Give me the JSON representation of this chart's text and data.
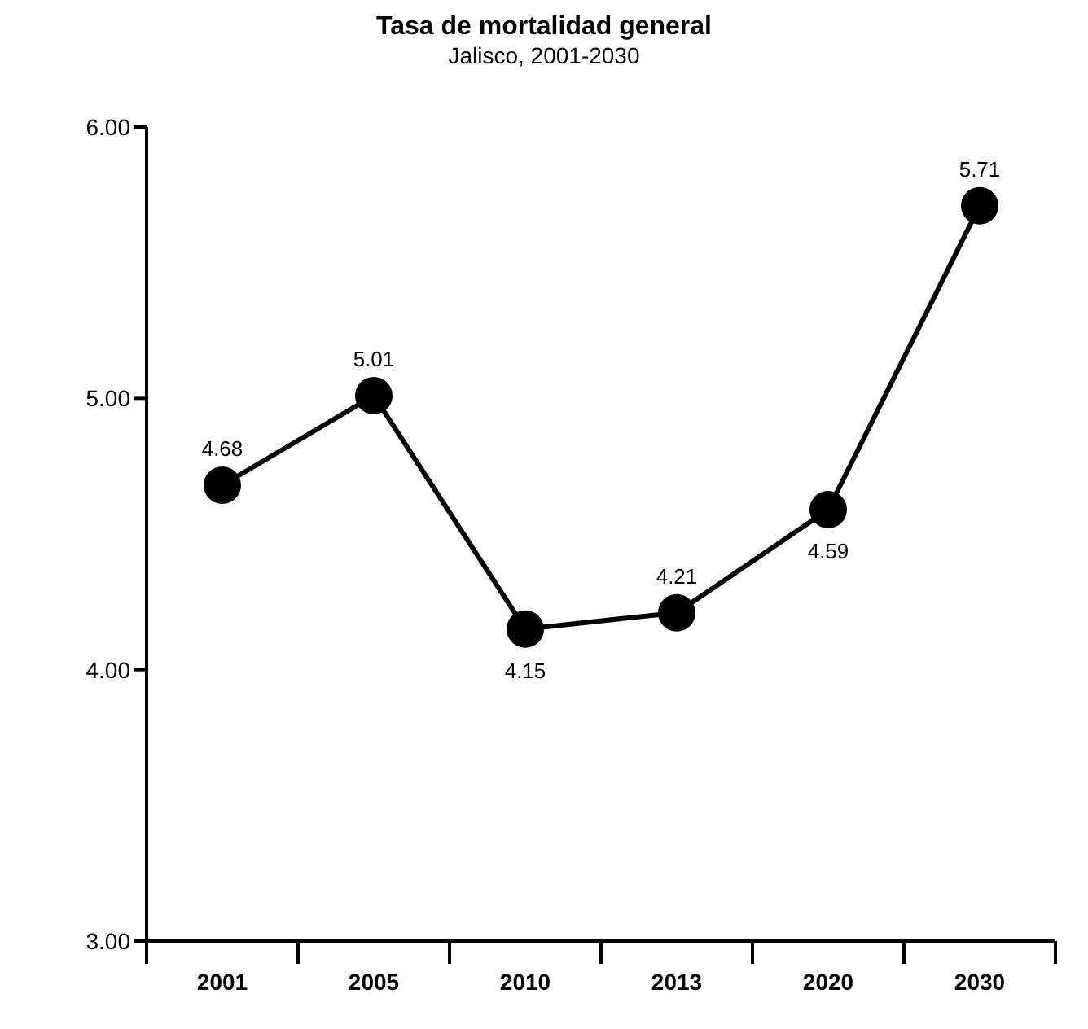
{
  "chart_data": {
    "type": "line",
    "title": "Tasa de mortalidad general",
    "subtitle": "Jalisco, 2001-2030",
    "categories": [
      "2001",
      "2005",
      "2010",
      "2013",
      "2020",
      "2030"
    ],
    "series": [
      {
        "color": "#000000",
        "values": [
          4.68,
          5.01,
          4.15,
          4.21,
          4.59,
          5.71
        ]
      }
    ],
    "ylim": [
      3,
      6
    ],
    "yticks": [
      {
        "value": 3,
        "label": "3.00"
      },
      {
        "value": 4,
        "label": "4.00"
      },
      {
        "value": 5,
        "label": "5.00"
      },
      {
        "value": 6,
        "label": "6.00"
      }
    ],
    "grid": false,
    "legend": false,
    "marker": "circle",
    "line_style": "solid",
    "data_labels": true
  }
}
